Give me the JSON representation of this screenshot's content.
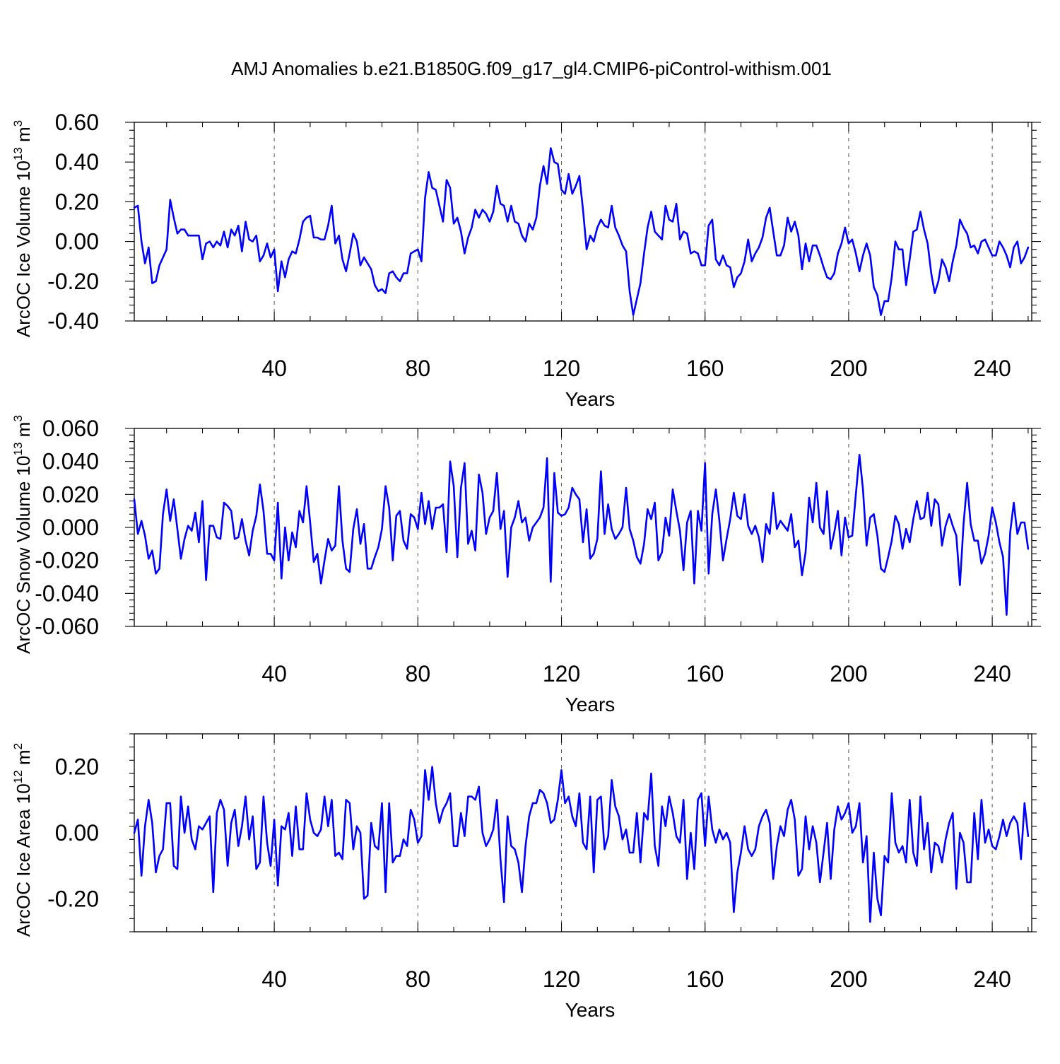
{
  "figure": {
    "title": "AMJ Anomalies b.e21.B1850G.f09_g17_gl4.CMIP6-piControl-withism.001",
    "line_color": "#0000ff"
  },
  "chart_data": [
    {
      "type": "line",
      "title": "",
      "xlabel": "Years",
      "ylabel_text": "ArcOC Ice Volume 10",
      "ylabel_exp": "13",
      "ylabel_unit": "m",
      "ylabel_unit_exp": "3",
      "xlim": [
        1,
        251
      ],
      "ylim": [
        -0.4,
        0.6
      ],
      "x_ticks": [
        40,
        80,
        120,
        160,
        200,
        240
      ],
      "x_tick_labels": [
        "40",
        "80",
        "120",
        "160",
        "200",
        "240"
      ],
      "y_ticks": [
        -0.4,
        -0.2,
        0.0,
        0.2,
        0.4,
        0.6
      ],
      "y_tick_labels": [
        "-0.40",
        "-0.20",
        "0.00",
        "0.20",
        "0.40",
        "0.60"
      ],
      "grid": "vertical dashed at x ticks",
      "series": [
        {
          "name": "ArcOC Ice Volume",
          "x_start": 1,
          "values": [
            0.17,
            0.18,
            0.0,
            -0.11,
            -0.03,
            -0.21,
            -0.2,
            -0.12,
            -0.08,
            -0.04,
            0.21,
            0.12,
            0.04,
            0.06,
            0.06,
            0.03,
            0.03,
            0.03,
            0.03,
            -0.09,
            -0.01,
            0.0,
            -0.03,
            0.0,
            -0.02,
            0.05,
            -0.03,
            0.06,
            0.03,
            0.08,
            -0.05,
            0.1,
            0.01,
            0.0,
            0.03,
            -0.1,
            -0.07,
            -0.01,
            -0.08,
            -0.04,
            -0.25,
            -0.1,
            -0.18,
            -0.09,
            -0.05,
            -0.06,
            0.01,
            0.1,
            0.12,
            0.13,
            0.02,
            0.02,
            0.01,
            0.01,
            0.08,
            0.18,
            -0.01,
            0.03,
            -0.09,
            -0.15,
            -0.06,
            0.04,
            0.0,
            -0.12,
            -0.08,
            -0.11,
            -0.14,
            -0.22,
            -0.25,
            -0.24,
            -0.26,
            -0.16,
            -0.15,
            -0.18,
            -0.2,
            -0.16,
            -0.16,
            -0.06,
            -0.05,
            -0.04,
            -0.1,
            0.22,
            0.35,
            0.27,
            0.26,
            0.18,
            0.1,
            0.31,
            0.27,
            0.09,
            0.12,
            0.05,
            -0.06,
            0.02,
            0.07,
            0.16,
            0.12,
            0.16,
            0.14,
            0.1,
            0.15,
            0.28,
            0.19,
            0.18,
            0.1,
            0.18,
            0.1,
            0.09,
            0.03,
            0.0,
            0.09,
            0.06,
            0.12,
            0.28,
            0.38,
            0.29,
            0.47,
            0.4,
            0.39,
            0.26,
            0.24,
            0.34,
            0.24,
            0.28,
            0.33,
            0.16,
            -0.04,
            0.03,
            0.0,
            0.07,
            0.11,
            0.08,
            0.07,
            0.18,
            0.07,
            0.03,
            -0.02,
            -0.05,
            -0.25,
            -0.37,
            -0.29,
            -0.21,
            -0.06,
            0.07,
            0.15,
            0.05,
            0.03,
            0.01,
            0.18,
            0.11,
            0.1,
            0.19,
            0.01,
            0.05,
            0.04,
            -0.06,
            -0.05,
            -0.06,
            -0.12,
            -0.12,
            0.08,
            0.11,
            -0.09,
            -0.12,
            -0.07,
            -0.12,
            -0.13,
            -0.23,
            -0.18,
            -0.16,
            -0.1,
            0.01,
            -0.1,
            -0.06,
            -0.03,
            0.02,
            0.12,
            0.17,
            0.05,
            -0.07,
            -0.07,
            -0.02,
            0.12,
            0.05,
            0.1,
            0.03,
            -0.14,
            -0.01,
            -0.1,
            -0.02,
            -0.02,
            -0.07,
            -0.13,
            -0.18,
            -0.19,
            -0.16,
            -0.06,
            -0.01,
            0.07,
            -0.01,
            0.01,
            -0.06,
            -0.15,
            -0.07,
            -0.01,
            -0.07,
            -0.23,
            -0.27,
            -0.37,
            -0.3,
            -0.3,
            -0.18,
            0.0,
            -0.04,
            -0.04,
            -0.22,
            -0.09,
            0.05,
            0.06,
            0.15,
            0.06,
            -0.01,
            -0.16,
            -0.26,
            -0.2,
            -0.09,
            -0.13,
            -0.2,
            -0.1,
            -0.02,
            0.11,
            0.07,
            0.04,
            -0.03,
            -0.02,
            -0.06,
            0.0,
            0.01,
            -0.03,
            -0.07,
            -0.07,
            0.0,
            -0.03,
            -0.07,
            -0.13,
            -0.03,
            0.0,
            -0.11,
            -0.08,
            -0.03
          ]
        }
      ]
    },
    {
      "type": "line",
      "title": "",
      "xlabel": "Years",
      "ylabel_text": "ArcOC Snow Volume 10",
      "ylabel_exp": "13",
      "ylabel_unit": "m",
      "ylabel_unit_exp": "3",
      "xlim": [
        1,
        251
      ],
      "ylim": [
        -0.06,
        0.06
      ],
      "x_ticks": [
        40,
        80,
        120,
        160,
        200,
        240
      ],
      "x_tick_labels": [
        "40",
        "80",
        "120",
        "160",
        "200",
        "240"
      ],
      "y_ticks": [
        -0.06,
        -0.04,
        -0.02,
        0.0,
        0.02,
        0.04,
        0.06
      ],
      "y_tick_labels": [
        "-0.060",
        "-0.040",
        "-0.020",
        "0.000",
        "0.020",
        "0.040",
        "0.060"
      ],
      "grid": "vertical dashed at x ticks",
      "series": [
        {
          "name": "ArcOC Snow Volume",
          "x_start": 1,
          "values": [
            0.017,
            -0.004,
            0.004,
            -0.005,
            -0.019,
            -0.014,
            -0.028,
            -0.025,
            0.008,
            0.023,
            0.004,
            0.017,
            -0.001,
            -0.019,
            -0.007,
            0.001,
            -0.002,
            0.009,
            -0.009,
            0.016,
            -0.032,
            0.001,
            0.001,
            -0.006,
            -0.007,
            0.015,
            0.013,
            0.01,
            -0.007,
            -0.006,
            0.005,
            -0.008,
            -0.017,
            -0.002,
            0.007,
            0.026,
            0.01,
            -0.016,
            -0.016,
            -0.02,
            0.015,
            -0.031,
            0.0,
            -0.02,
            -0.003,
            -0.012,
            0.01,
            0.003,
            0.025,
            0.003,
            -0.021,
            -0.016,
            -0.034,
            -0.02,
            -0.007,
            -0.014,
            -0.011,
            0.025,
            -0.008,
            -0.025,
            -0.027,
            -0.001,
            0.011,
            -0.01,
            0.002,
            -0.025,
            -0.025,
            -0.018,
            -0.012,
            -0.001,
            0.025,
            0.012,
            -0.02,
            0.007,
            0.01,
            -0.008,
            -0.013,
            0.008,
            0.006,
            -0.001,
            0.021,
            0.002,
            0.016,
            -0.001,
            0.012,
            0.012,
            0.014,
            -0.015,
            0.04,
            0.025,
            -0.018,
            0.024,
            0.039,
            -0.01,
            -0.002,
            -0.014,
            0.032,
            0.021,
            -0.004,
            0.006,
            0.01,
            0.033,
            -0.001,
            0.01,
            -0.03,
            0.0,
            0.006,
            0.016,
            0.003,
            0.006,
            -0.008,
            0.0,
            0.003,
            0.006,
            0.012,
            0.042,
            -0.033,
            0.033,
            0.009,
            0.007,
            0.008,
            0.012,
            0.024,
            0.02,
            0.017,
            -0.009,
            0.011,
            -0.019,
            -0.016,
            -0.007,
            0.034,
            -0.004,
            0.014,
            -0.001,
            -0.007,
            -0.004,
            0.0,
            0.024,
            -0.001,
            -0.008,
            -0.018,
            -0.022,
            -0.01,
            0.011,
            0.005,
            0.015,
            -0.02,
            -0.015,
            0.006,
            -0.005,
            0.023,
            0.01,
            -0.002,
            -0.026,
            0.003,
            0.01,
            -0.034,
            0.01,
            -0.002,
            0.039,
            -0.028,
            0.008,
            0.023,
            0.004,
            -0.02,
            -0.007,
            0.005,
            0.021,
            0.007,
            0.005,
            0.02,
            0.001,
            -0.004,
            0.001,
            -0.006,
            -0.021,
            0.002,
            -0.004,
            0.021,
            -0.001,
            0.004,
            0.001,
            -0.002,
            0.008,
            -0.012,
            -0.008,
            -0.029,
            -0.015,
            0.018,
            0.003,
            0.027,
            0.0,
            -0.004,
            0.022,
            -0.013,
            -0.003,
            0.01,
            -0.017,
            0.006,
            -0.006,
            -0.005,
            0.02,
            0.044,
            0.023,
            -0.011,
            0.006,
            0.008,
            -0.005,
            -0.025,
            -0.027,
            -0.018,
            -0.008,
            0.007,
            0.002,
            -0.013,
            -0.001,
            -0.009,
            0.005,
            0.016,
            0.005,
            0.006,
            0.021,
            0.001,
            0.017,
            0.014,
            -0.011,
            0.001,
            0.008,
            0.001,
            -0.005,
            -0.035,
            0.002,
            0.027,
            0.002,
            -0.008,
            -0.008,
            -0.022,
            -0.016,
            -0.005,
            0.012,
            0.003,
            -0.009,
            -0.018,
            -0.053,
            -0.003,
            0.015,
            -0.004,
            0.003,
            0.003,
            -0.013
          ]
        }
      ]
    },
    {
      "type": "line",
      "title": "",
      "xlabel": "Years",
      "ylabel_text": "ArcOC Ice Area 10",
      "ylabel_exp": "12",
      "ylabel_unit": "m",
      "ylabel_unit_exp": "2",
      "xlim": [
        1,
        251
      ],
      "ylim": [
        -0.3,
        0.3
      ],
      "x_ticks": [
        40,
        80,
        120,
        160,
        200,
        240
      ],
      "x_tick_labels": [
        "40",
        "80",
        "120",
        "160",
        "200",
        "240"
      ],
      "y_ticks": [
        -0.2,
        0.0,
        0.2
      ],
      "y_tick_labels": [
        "-0.20",
        "0.00",
        "0.20"
      ],
      "grid": "vertical dashed at x ticks",
      "series": [
        {
          "name": "ArcOC Ice Area",
          "x_start": 1,
          "values": [
            0.0,
            0.04,
            -0.13,
            0.02,
            0.1,
            0.03,
            -0.12,
            -0.07,
            -0.05,
            0.09,
            0.09,
            -0.1,
            -0.11,
            0.11,
            0.0,
            0.08,
            -0.02,
            -0.05,
            0.02,
            0.01,
            0.03,
            0.05,
            -0.18,
            0.06,
            0.1,
            0.07,
            -0.1,
            0.03,
            0.07,
            -0.04,
            0.02,
            0.11,
            -0.02,
            0.05,
            -0.11,
            -0.09,
            0.11,
            -0.03,
            -0.1,
            0.04,
            -0.16,
            0.02,
            0.01,
            0.06,
            -0.07,
            0.08,
            -0.05,
            -0.05,
            0.12,
            0.04,
            0.0,
            -0.01,
            0.01,
            0.11,
            0.02,
            0.1,
            -0.07,
            -0.06,
            -0.08,
            0.1,
            0.09,
            -0.05,
            0.02,
            0.0,
            -0.2,
            -0.19,
            0.03,
            -0.04,
            -0.05,
            0.09,
            -0.18,
            0.09,
            -0.09,
            -0.07,
            -0.07,
            -0.02,
            -0.04,
            0.07,
            0.04,
            -0.03,
            -0.01,
            0.19,
            0.1,
            0.2,
            0.09,
            0.03,
            0.07,
            0.09,
            0.12,
            -0.04,
            -0.04,
            0.06,
            -0.01,
            0.11,
            0.11,
            0.1,
            0.14,
            0.0,
            -0.04,
            -0.02,
            0.01,
            0.1,
            -0.08,
            -0.21,
            0.05,
            -0.04,
            -0.05,
            -0.09,
            -0.18,
            -0.04,
            0.05,
            0.09,
            0.09,
            0.13,
            0.12,
            0.09,
            0.03,
            0.04,
            0.1,
            0.19,
            0.09,
            0.11,
            0.05,
            0.02,
            0.12,
            -0.03,
            -0.05,
            0.11,
            -0.12,
            0.1,
            0.11,
            -0.05,
            -0.01,
            0.16,
            0.08,
            0.05,
            -0.02,
            0.01,
            -0.06,
            -0.06,
            0.06,
            -0.09,
            0.06,
            0.04,
            0.18,
            -0.04,
            -0.1,
            0.08,
            0.02,
            0.11,
            0.06,
            -0.01,
            -0.03,
            0.1,
            -0.14,
            0.0,
            -0.11,
            0.1,
            0.12,
            -0.04,
            0.11,
            0.01,
            -0.03,
            0.01,
            -0.02,
            0.0,
            -0.03,
            -0.24,
            -0.12,
            -0.06,
            0.02,
            -0.05,
            -0.07,
            -0.05,
            0.02,
            0.05,
            0.07,
            0.03,
            -0.14,
            -0.04,
            0.02,
            -0.01,
            0.07,
            0.1,
            0.04,
            -0.13,
            -0.11,
            0.05,
            -0.05,
            0.02,
            -0.03,
            -0.15,
            -0.06,
            0.03,
            -0.14,
            0.01,
            0.08,
            0.04,
            0.06,
            0.09,
            0.0,
            0.02,
            0.09,
            -0.09,
            -0.01,
            -0.27,
            -0.06,
            -0.2,
            -0.25,
            -0.07,
            -0.09,
            0.12,
            -0.03,
            -0.06,
            -0.04,
            -0.09,
            0.1,
            -0.06,
            -0.1,
            0.11,
            -0.05,
            0.03,
            -0.12,
            -0.03,
            -0.04,
            -0.09,
            -0.02,
            0.03,
            0.06,
            -0.17,
            0.0,
            -0.03,
            -0.15,
            -0.15,
            0.06,
            -0.08,
            0.1,
            -0.03,
            0.01,
            -0.04,
            -0.05,
            -0.01,
            0.04,
            -0.01,
            0.03,
            0.05,
            0.03,
            -0.08,
            0.09,
            -0.01
          ]
        }
      ]
    }
  ]
}
